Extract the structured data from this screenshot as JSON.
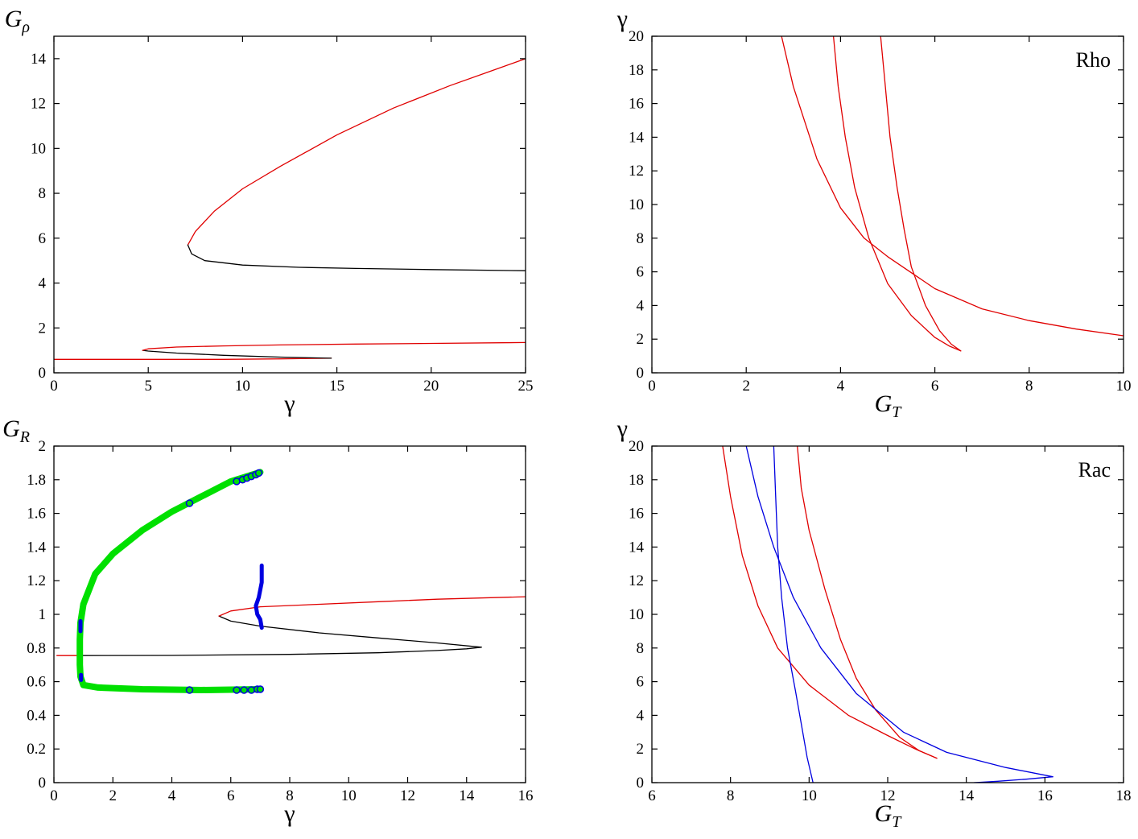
{
  "colors": {
    "red": "#e00000",
    "black": "#000000",
    "blue": "#0000e0",
    "green": "#00e000"
  },
  "chart_data": [
    {
      "id": "top-left",
      "type": "line",
      "xlabel": "γ",
      "ylabel": {
        "base": "G",
        "sub": "ρ"
      },
      "xlim": [
        0,
        25
      ],
      "ylim": [
        0,
        15
      ],
      "xticks": [
        0,
        5,
        10,
        15,
        20,
        25
      ],
      "yticks": [
        0,
        2,
        4,
        6,
        8,
        10,
        12,
        14
      ],
      "series": [
        {
          "color": "red",
          "points": [
            [
              7.1,
              5.7
            ],
            [
              7.5,
              6.3
            ],
            [
              8.5,
              7.2
            ],
            [
              10,
              8.2
            ],
            [
              12,
              9.2
            ],
            [
              15,
              10.6
            ],
            [
              18,
              11.8
            ],
            [
              21,
              12.8
            ],
            [
              23,
              13.4
            ],
            [
              25,
              14.0
            ]
          ]
        },
        {
          "color": "black",
          "points": [
            [
              7.1,
              5.7
            ],
            [
              7.3,
              5.3
            ],
            [
              8.0,
              5.0
            ],
            [
              10,
              4.8
            ],
            [
              13,
              4.7
            ],
            [
              16,
              4.65
            ],
            [
              20,
              4.6
            ],
            [
              25,
              4.55
            ]
          ]
        },
        {
          "color": "red",
          "points": [
            [
              0,
              0.6
            ],
            [
              3,
              0.6
            ],
            [
              6,
              0.6
            ],
            [
              9,
              0.6
            ],
            [
              12,
              0.62
            ],
            [
              14.7,
              0.65
            ]
          ]
        },
        {
          "color": "black",
          "points": [
            [
              14.7,
              0.65
            ],
            [
              12,
              0.7
            ],
            [
              9,
              0.78
            ],
            [
              6.5,
              0.88
            ],
            [
              5,
              0.97
            ],
            [
              4.7,
              1.0
            ]
          ]
        },
        {
          "color": "red",
          "points": [
            [
              4.7,
              1.0
            ],
            [
              5,
              1.07
            ],
            [
              6.5,
              1.15
            ],
            [
              9,
              1.2
            ],
            [
              12,
              1.24
            ],
            [
              16,
              1.28
            ],
            [
              20,
              1.31
            ],
            [
              25,
              1.35
            ]
          ]
        }
      ]
    },
    {
      "id": "top-right",
      "type": "line",
      "xlabel": {
        "base": "G",
        "sub": "T"
      },
      "ylabel": "γ",
      "xlim": [
        0,
        10
      ],
      "ylim": [
        0,
        20
      ],
      "xticks": [
        0,
        2,
        4,
        6,
        8,
        10
      ],
      "yticks": [
        0,
        2,
        4,
        6,
        8,
        10,
        12,
        14,
        16,
        18,
        20
      ],
      "annotation": "Rho",
      "series": [
        {
          "color": "red",
          "points": [
            [
              2.75,
              20
            ],
            [
              3,
              17
            ],
            [
              3.5,
              12.7
            ],
            [
              4,
              9.8
            ],
            [
              4.5,
              8.0
            ],
            [
              5,
              6.9
            ],
            [
              6,
              5.0
            ],
            [
              7,
              3.8
            ],
            [
              8,
              3.1
            ],
            [
              9,
              2.6
            ],
            [
              10,
              2.2
            ]
          ]
        },
        {
          "color": "red",
          "points": [
            [
              3.85,
              20
            ],
            [
              3.95,
              17
            ],
            [
              4.1,
              14
            ],
            [
              4.3,
              11
            ],
            [
              4.6,
              8
            ],
            [
              5.0,
              5.3
            ],
            [
              5.5,
              3.4
            ],
            [
              6.0,
              2.1
            ],
            [
              6.3,
              1.6
            ],
            [
              6.55,
              1.3
            ]
          ]
        },
        {
          "color": "red",
          "points": [
            [
              4.85,
              20
            ],
            [
              4.95,
              17
            ],
            [
              5.05,
              14
            ],
            [
              5.2,
              11
            ],
            [
              5.35,
              8.5
            ],
            [
              5.5,
              6.3
            ],
            [
              5.8,
              4.0
            ],
            [
              6.1,
              2.5
            ],
            [
              6.35,
              1.7
            ],
            [
              6.55,
              1.3
            ]
          ]
        }
      ]
    },
    {
      "id": "bottom-left",
      "type": "line",
      "xlabel": "γ",
      "ylabel": {
        "base": "G",
        "sub": "R"
      },
      "xlim": [
        0,
        16
      ],
      "ylim": [
        0,
        2
      ],
      "xticks": [
        0,
        2,
        4,
        6,
        8,
        10,
        12,
        14,
        16
      ],
      "yticks": [
        0,
        0.2,
        0.4,
        0.6,
        0.8,
        1,
        1.2,
        1.4,
        1.6,
        1.8,
        2
      ],
      "series": [
        {
          "color": "red",
          "points": [
            [
              0.1,
              0.755
            ],
            [
              0.8,
              0.755
            ]
          ]
        },
        {
          "color": "black",
          "points": [
            [
              0.8,
              0.755
            ],
            [
              4,
              0.756
            ],
            [
              8,
              0.762
            ],
            [
              11,
              0.772
            ],
            [
              13,
              0.785
            ],
            [
              14,
              0.795
            ],
            [
              14.5,
              0.805
            ]
          ]
        },
        {
          "color": "black",
          "points": [
            [
              14.5,
              0.805
            ],
            [
              13,
              0.83
            ],
            [
              11,
              0.86
            ],
            [
              9,
              0.89
            ],
            [
              7,
              0.93
            ],
            [
              6,
              0.96
            ],
            [
              5.6,
              0.99
            ]
          ]
        },
        {
          "color": "red",
          "points": [
            [
              5.6,
              0.99
            ],
            [
              6,
              1.02
            ],
            [
              7,
              1.045
            ],
            [
              9,
              1.06
            ],
            [
              11,
              1.075
            ],
            [
              13,
              1.09
            ],
            [
              16,
              1.105
            ]
          ]
        },
        {
          "color": "green",
          "width": 8,
          "points": [
            [
              7.0,
              1.845
            ],
            [
              6,
              1.79
            ],
            [
              5,
              1.7
            ],
            [
              4,
              1.61
            ],
            [
              3,
              1.5
            ],
            [
              2,
              1.36
            ],
            [
              1.4,
              1.24
            ],
            [
              1.0,
              1.06
            ],
            [
              0.9,
              0.95
            ],
            [
              0.88,
              0.85
            ],
            [
              0.88,
              0.7
            ],
            [
              0.9,
              0.63
            ],
            [
              1.0,
              0.58
            ],
            [
              1.5,
              0.565
            ],
            [
              3,
              0.555
            ],
            [
              5,
              0.55
            ],
            [
              7.0,
              0.555
            ]
          ]
        },
        {
          "color": "blue",
          "width": 5,
          "points": [
            [
              7.05,
              1.29
            ],
            [
              7.05,
              1.19
            ],
            [
              6.95,
              1.1
            ],
            [
              6.85,
              1.05
            ],
            [
              6.9,
              1.0
            ],
            [
              7.0,
              0.97
            ],
            [
              7.05,
              0.92
            ]
          ]
        },
        {
          "color": "blue",
          "width": 5,
          "points": [
            [
              0.9,
              0.96
            ],
            [
              0.9,
              0.9
            ]
          ]
        },
        {
          "color": "blue",
          "width": 5,
          "points": [
            [
              0.92,
              0.64
            ],
            [
              0.92,
              0.61
            ]
          ]
        }
      ],
      "markers": [
        {
          "color": "blue",
          "points": [
            [
              6.2,
              1.79
            ],
            [
              6.4,
              1.8
            ],
            [
              6.55,
              1.81
            ],
            [
              6.7,
              1.82
            ],
            [
              6.85,
              1.83
            ],
            [
              6.95,
              1.84
            ],
            [
              4.6,
              1.66
            ],
            [
              6.2,
              0.55
            ],
            [
              6.45,
              0.55
            ],
            [
              6.7,
              0.55
            ],
            [
              6.9,
              0.555
            ],
            [
              7.0,
              0.555
            ],
            [
              4.6,
              0.55
            ]
          ]
        }
      ]
    },
    {
      "id": "bottom-right",
      "type": "line",
      "xlabel": {
        "base": "G",
        "sub": "T"
      },
      "ylabel": "γ",
      "xlim": [
        6,
        18
      ],
      "ylim": [
        0,
        20
      ],
      "xticks": [
        6,
        8,
        10,
        12,
        14,
        16,
        18
      ],
      "yticks": [
        0,
        2,
        4,
        6,
        8,
        10,
        12,
        14,
        16,
        18,
        20
      ],
      "annotation": "Rac",
      "series": [
        {
          "color": "red",
          "points": [
            [
              7.8,
              20
            ],
            [
              8,
              17
            ],
            [
              8.3,
              13.5
            ],
            [
              8.7,
              10.5
            ],
            [
              9.2,
              8
            ],
            [
              10,
              5.8
            ],
            [
              11,
              4.0
            ],
            [
              12,
              2.8
            ],
            [
              12.7,
              2.0
            ],
            [
              13.25,
              1.45
            ]
          ]
        },
        {
          "color": "red",
          "points": [
            [
              9.7,
              20
            ],
            [
              9.8,
              17.5
            ],
            [
              10,
              15
            ],
            [
              10.4,
              11.5
            ],
            [
              10.8,
              8.5
            ],
            [
              11.2,
              6.2
            ],
            [
              11.7,
              4.3
            ],
            [
              12.3,
              2.7
            ],
            [
              12.8,
              1.9
            ],
            [
              13.25,
              1.45
            ]
          ]
        },
        {
          "color": "blue",
          "points": [
            [
              8.4,
              20
            ],
            [
              8.7,
              17
            ],
            [
              9.1,
              14
            ],
            [
              9.6,
              11
            ],
            [
              10.3,
              8
            ],
            [
              11.2,
              5.3
            ],
            [
              12.4,
              3.0
            ],
            [
              13.5,
              1.8
            ],
            [
              15,
              0.9
            ],
            [
              16.2,
              0.35
            ]
          ]
        },
        {
          "color": "blue",
          "points": [
            [
              16.2,
              0.35
            ],
            [
              15.5,
              0.2
            ],
            [
              14.8,
              0.08
            ],
            [
              14.2,
              0.0
            ]
          ]
        },
        {
          "color": "blue",
          "points": [
            [
              9.1,
              20
            ],
            [
              9.15,
              17
            ],
            [
              9.2,
              14
            ],
            [
              9.3,
              11
            ],
            [
              9.45,
              8
            ],
            [
              9.65,
              5.5
            ],
            [
              9.8,
              3.5
            ],
            [
              9.95,
              1.5
            ],
            [
              10.1,
              0
            ]
          ]
        }
      ]
    }
  ]
}
